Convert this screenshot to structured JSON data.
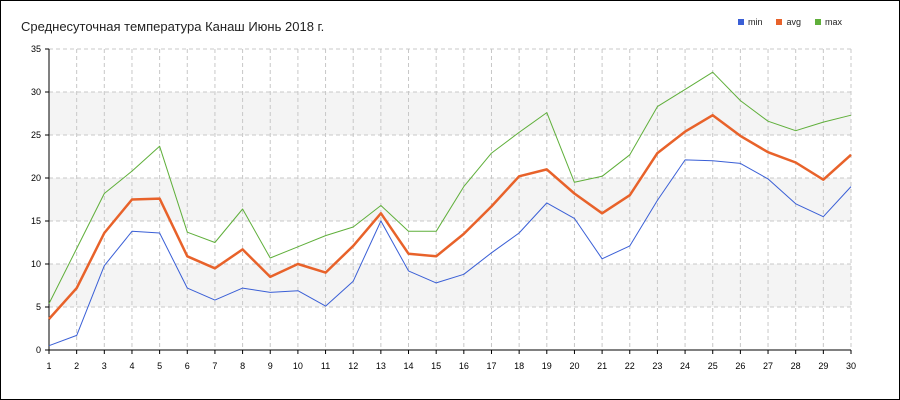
{
  "chart_data": {
    "type": "line",
    "title": "Среднесуточная температура Канаш  Июнь 2018 г.",
    "xlabel": "",
    "ylabel": "",
    "x": [
      1,
      2,
      3,
      4,
      5,
      6,
      7,
      8,
      9,
      10,
      11,
      12,
      13,
      14,
      15,
      16,
      17,
      18,
      19,
      20,
      21,
      22,
      23,
      24,
      25,
      26,
      27,
      28,
      29,
      30
    ],
    "xlim": [
      1,
      30
    ],
    "ylim": [
      0,
      35
    ],
    "yticks": [
      0,
      5,
      10,
      15,
      20,
      25,
      30,
      35
    ],
    "grid": true,
    "legend_position": "top-right",
    "series": [
      {
        "name": "min",
        "color": "#3a5fd6",
        "values": [
          0.5,
          1.7,
          9.8,
          13.8,
          13.6,
          7.2,
          5.8,
          7.2,
          6.7,
          6.9,
          5.1,
          8.0,
          15.0,
          9.2,
          7.8,
          8.8,
          11.3,
          13.6,
          17.1,
          15.3,
          10.6,
          12.1,
          17.4,
          22.1,
          22.0,
          21.7,
          19.9,
          17.0,
          15.5,
          19.0
        ]
      },
      {
        "name": "avg",
        "color": "#e8622a",
        "values": [
          3.6,
          7.2,
          13.6,
          17.5,
          17.6,
          10.9,
          9.5,
          11.7,
          8.5,
          10.0,
          9.0,
          12.1,
          15.9,
          11.2,
          10.9,
          13.5,
          16.7,
          20.2,
          21.0,
          18.2,
          15.9,
          18.0,
          22.9,
          25.4,
          27.3,
          24.9,
          23.0,
          21.8,
          19.8,
          22.7
        ]
      },
      {
        "name": "max",
        "color": "#5faf3a",
        "values": [
          5.4,
          11.8,
          18.2,
          20.8,
          23.7,
          13.7,
          12.5,
          16.4,
          10.7,
          12.0,
          13.3,
          14.3,
          16.8,
          13.8,
          13.8,
          19.0,
          22.9,
          25.3,
          27.6,
          19.5,
          20.2,
          22.7,
          28.3,
          30.3,
          32.3,
          29.0,
          26.6,
          25.5,
          26.5,
          27.3
        ]
      }
    ]
  }
}
